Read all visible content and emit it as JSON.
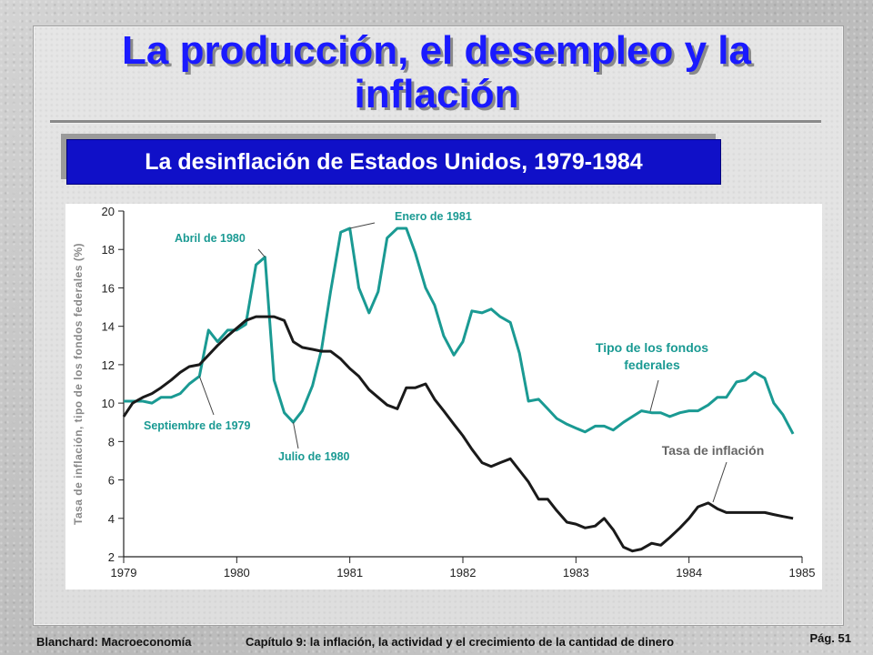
{
  "slide": {
    "title": "La producción, el desempleo y la inflación",
    "subtitle": "La desinflación de Estados Unidos, 1979-1984",
    "footer_left": "Blanchard: Macroeconomía",
    "footer_center": "Capítulo 9: la inflación, la actividad y el crecimiento de la cantidad de dinero",
    "page": "Pág. 51"
  },
  "colors": {
    "title": "#1a1aff",
    "subtitle_bg": "#1010c8",
    "fed_funds": "#1a9a93",
    "inflation": "#1a1a1a",
    "annotation": "#1a9a93"
  },
  "chart_data": {
    "type": "line",
    "title": "",
    "xlabel": "",
    "ylabel": "Tasa de inflación, tipo de los fondos federales (%)",
    "xlim": [
      1979,
      1985
    ],
    "ylim": [
      2,
      20
    ],
    "x_ticks": [
      "1979",
      "1980",
      "1981",
      "1982",
      "1983",
      "1984",
      "1985"
    ],
    "y_ticks": [
      "2",
      "4",
      "6",
      "8",
      "10",
      "12",
      "14",
      "16",
      "18",
      "20"
    ],
    "grid": false,
    "series": [
      {
        "name": "Tipo de los fondos federales",
        "label_lines": [
          "Tipo de los fondos",
          "federales"
        ],
        "color": "#1a9a93",
        "points": [
          [
            1979.0,
            10.1
          ],
          [
            1979.08,
            10.1
          ],
          [
            1979.17,
            10.1
          ],
          [
            1979.25,
            10.0
          ],
          [
            1979.33,
            10.3
          ],
          [
            1979.42,
            10.3
          ],
          [
            1979.5,
            10.5
          ],
          [
            1979.58,
            11.0
          ],
          [
            1979.67,
            11.4
          ],
          [
            1979.75,
            13.8
          ],
          [
            1979.83,
            13.2
          ],
          [
            1979.92,
            13.8
          ],
          [
            1980.0,
            13.8
          ],
          [
            1980.08,
            14.1
          ],
          [
            1980.17,
            17.2
          ],
          [
            1980.25,
            17.6
          ],
          [
            1980.33,
            11.2
          ],
          [
            1980.42,
            9.5
          ],
          [
            1980.5,
            9.0
          ],
          [
            1980.58,
            9.6
          ],
          [
            1980.67,
            10.9
          ],
          [
            1980.75,
            12.8
          ],
          [
            1980.83,
            15.8
          ],
          [
            1980.92,
            18.9
          ],
          [
            1981.0,
            19.1
          ],
          [
            1981.08,
            16.0
          ],
          [
            1981.17,
            14.7
          ],
          [
            1981.25,
            15.8
          ],
          [
            1981.33,
            18.6
          ],
          [
            1981.42,
            19.1
          ],
          [
            1981.5,
            19.1
          ],
          [
            1981.58,
            17.8
          ],
          [
            1981.67,
            16.0
          ],
          [
            1981.75,
            15.1
          ],
          [
            1981.83,
            13.5
          ],
          [
            1981.92,
            12.5
          ],
          [
            1982.0,
            13.2
          ],
          [
            1982.08,
            14.8
          ],
          [
            1982.17,
            14.7
          ],
          [
            1982.25,
            14.9
          ],
          [
            1982.33,
            14.5
          ],
          [
            1982.42,
            14.2
          ],
          [
            1982.5,
            12.6
          ],
          [
            1982.58,
            10.1
          ],
          [
            1982.67,
            10.2
          ],
          [
            1982.75,
            9.7
          ],
          [
            1982.83,
            9.2
          ],
          [
            1982.92,
            8.9
          ],
          [
            1983.0,
            8.7
          ],
          [
            1983.08,
            8.5
          ],
          [
            1983.17,
            8.8
          ],
          [
            1983.25,
            8.8
          ],
          [
            1983.33,
            8.6
          ],
          [
            1983.42,
            9.0
          ],
          [
            1983.5,
            9.3
          ],
          [
            1983.58,
            9.6
          ],
          [
            1983.67,
            9.5
          ],
          [
            1983.75,
            9.5
          ],
          [
            1983.83,
            9.3
          ],
          [
            1983.92,
            9.5
          ],
          [
            1984.0,
            9.6
          ],
          [
            1984.08,
            9.6
          ],
          [
            1984.17,
            9.9
          ],
          [
            1984.25,
            10.3
          ],
          [
            1984.33,
            10.3
          ],
          [
            1984.42,
            11.1
          ],
          [
            1984.5,
            11.2
          ],
          [
            1984.58,
            11.6
          ],
          [
            1984.67,
            11.3
          ],
          [
            1984.75,
            10.0
          ],
          [
            1984.83,
            9.4
          ],
          [
            1984.92,
            8.4
          ]
        ]
      },
      {
        "name": "Tasa de inflación",
        "color": "#1a1a1a",
        "points": [
          [
            1979.0,
            9.3
          ],
          [
            1979.08,
            10.0
          ],
          [
            1979.17,
            10.3
          ],
          [
            1979.25,
            10.5
          ],
          [
            1979.33,
            10.8
          ],
          [
            1979.42,
            11.2
          ],
          [
            1979.5,
            11.6
          ],
          [
            1979.58,
            11.9
          ],
          [
            1979.67,
            12.0
          ],
          [
            1979.75,
            12.5
          ],
          [
            1979.83,
            13.0
          ],
          [
            1979.92,
            13.5
          ],
          [
            1980.0,
            13.9
          ],
          [
            1980.08,
            14.3
          ],
          [
            1980.17,
            14.5
          ],
          [
            1980.25,
            14.5
          ],
          [
            1980.33,
            14.5
          ],
          [
            1980.42,
            14.3
          ],
          [
            1980.5,
            13.2
          ],
          [
            1980.58,
            12.9
          ],
          [
            1980.67,
            12.8
          ],
          [
            1980.75,
            12.7
          ],
          [
            1980.83,
            12.7
          ],
          [
            1980.92,
            12.3
          ],
          [
            1981.0,
            11.8
          ],
          [
            1981.08,
            11.4
          ],
          [
            1981.17,
            10.7
          ],
          [
            1981.25,
            10.3
          ],
          [
            1981.33,
            9.9
          ],
          [
            1981.42,
            9.7
          ],
          [
            1981.5,
            10.8
          ],
          [
            1981.58,
            10.8
          ],
          [
            1981.67,
            11.0
          ],
          [
            1981.75,
            10.2
          ],
          [
            1981.83,
            9.6
          ],
          [
            1981.92,
            8.9
          ],
          [
            1982.0,
            8.3
          ],
          [
            1982.08,
            7.6
          ],
          [
            1982.17,
            6.9
          ],
          [
            1982.25,
            6.7
          ],
          [
            1982.33,
            6.9
          ],
          [
            1982.42,
            7.1
          ],
          [
            1982.5,
            6.5
          ],
          [
            1982.58,
            5.9
          ],
          [
            1982.67,
            5.0
          ],
          [
            1982.75,
            5.0
          ],
          [
            1982.83,
            4.4
          ],
          [
            1982.92,
            3.8
          ],
          [
            1983.0,
            3.7
          ],
          [
            1983.08,
            3.5
          ],
          [
            1983.17,
            3.6
          ],
          [
            1983.25,
            4.0
          ],
          [
            1983.33,
            3.4
          ],
          [
            1983.42,
            2.5
          ],
          [
            1983.5,
            2.3
          ],
          [
            1983.58,
            2.4
          ],
          [
            1983.67,
            2.7
          ],
          [
            1983.75,
            2.6
          ],
          [
            1983.83,
            3.0
          ],
          [
            1983.92,
            3.5
          ],
          [
            1984.0,
            4.0
          ],
          [
            1984.08,
            4.6
          ],
          [
            1984.17,
            4.8
          ],
          [
            1984.25,
            4.5
          ],
          [
            1984.33,
            4.3
          ],
          [
            1984.42,
            4.3
          ],
          [
            1984.5,
            4.3
          ],
          [
            1984.58,
            4.3
          ],
          [
            1984.67,
            4.3
          ],
          [
            1984.75,
            4.2
          ],
          [
            1984.83,
            4.1
          ],
          [
            1984.92,
            4.0
          ]
        ]
      }
    ],
    "annotations": [
      {
        "text": "Abril de 1980",
        "x": 1980.25,
        "y": 17.6
      },
      {
        "text": "Enero de 1981",
        "x": 1981.0,
        "y": 19.1
      },
      {
        "text": "Septiembre de 1979",
        "x": 1979.67,
        "y": 11.4
      },
      {
        "text": "Julio de 1980",
        "x": 1980.5,
        "y": 9.0
      }
    ]
  }
}
